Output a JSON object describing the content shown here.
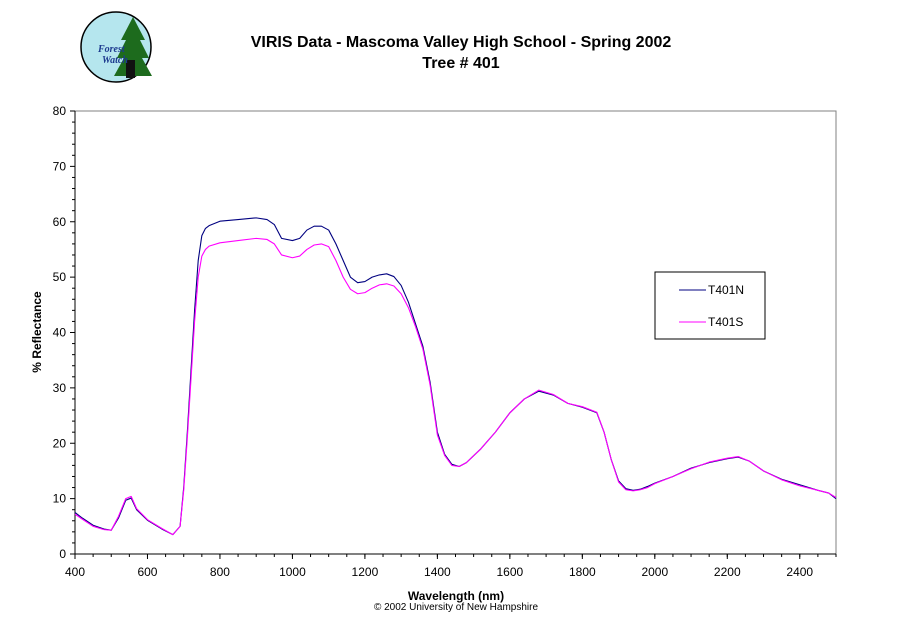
{
  "logo": {
    "line1": "Forest",
    "line2": "Watch"
  },
  "copyright": "© 2002 University of New Hampshire",
  "chart_data": {
    "type": "line",
    "title": "VIRIS Data - Mascoma Valley High School - Spring 2002",
    "subtitle": "Tree # 401",
    "xlabel": "Wavelength (nm)",
    "ylabel": "% Reflectance",
    "xlim": [
      400,
      2500
    ],
    "ylim": [
      0,
      80
    ],
    "xticks": [
      400,
      600,
      800,
      1000,
      1200,
      1400,
      1600,
      1800,
      2000,
      2200,
      2400
    ],
    "yticks": [
      0,
      10,
      20,
      30,
      40,
      50,
      60,
      70,
      80
    ],
    "grid": false,
    "legend_position": "right",
    "series": [
      {
        "name": "T401N",
        "color": "#000080",
        "x": [
          400,
          420,
          450,
          480,
          500,
          520,
          540,
          555,
          570,
          600,
          640,
          670,
          690,
          700,
          710,
          720,
          730,
          740,
          750,
          760,
          770,
          800,
          850,
          900,
          930,
          950,
          970,
          1000,
          1020,
          1040,
          1060,
          1080,
          1100,
          1120,
          1140,
          1160,
          1180,
          1200,
          1220,
          1240,
          1260,
          1280,
          1300,
          1320,
          1340,
          1360,
          1380,
          1400,
          1420,
          1440,
          1460,
          1480,
          1520,
          1560,
          1600,
          1640,
          1680,
          1720,
          1760,
          1800,
          1840,
          1860,
          1880,
          1900,
          1920,
          1940,
          1960,
          1980,
          2000,
          2050,
          2100,
          2150,
          2200,
          2230,
          2260,
          2300,
          2350,
          2400,
          2450,
          2480,
          2500
        ],
        "y": [
          7.5,
          6.5,
          5.2,
          4.5,
          4.3,
          6.5,
          9.7,
          10.1,
          8.0,
          6.1,
          4.5,
          3.5,
          5.0,
          12.0,
          22.0,
          33.0,
          44.0,
          53.0,
          57.5,
          58.8,
          59.3,
          60.1,
          60.4,
          60.7,
          60.4,
          59.5,
          57.0,
          56.6,
          57.0,
          58.5,
          59.2,
          59.2,
          58.5,
          56.0,
          53.0,
          50.0,
          49.0,
          49.2,
          50.0,
          50.4,
          50.6,
          50.1,
          48.5,
          45.5,
          41.5,
          37.5,
          31.0,
          22.0,
          18.0,
          16.2,
          15.8,
          16.5,
          19.0,
          22.0,
          25.5,
          28.0,
          29.4,
          28.7,
          27.2,
          26.5,
          25.5,
          22.0,
          17.0,
          13.2,
          11.8,
          11.5,
          11.7,
          12.2,
          12.8,
          14.0,
          15.5,
          16.5,
          17.2,
          17.5,
          16.8,
          15.0,
          13.5,
          12.5,
          11.5,
          11.0,
          10.0
        ]
      },
      {
        "name": "T401S",
        "color": "#ff00ff",
        "x": [
          400,
          420,
          450,
          480,
          500,
          520,
          540,
          555,
          570,
          600,
          640,
          670,
          690,
          700,
          710,
          720,
          730,
          740,
          750,
          760,
          770,
          800,
          850,
          900,
          930,
          950,
          970,
          1000,
          1020,
          1040,
          1060,
          1080,
          1100,
          1120,
          1140,
          1160,
          1180,
          1200,
          1220,
          1240,
          1260,
          1280,
          1300,
          1320,
          1340,
          1360,
          1380,
          1400,
          1420,
          1440,
          1460,
          1480,
          1520,
          1560,
          1600,
          1640,
          1680,
          1720,
          1760,
          1800,
          1840,
          1860,
          1880,
          1900,
          1920,
          1940,
          1960,
          1980,
          2000,
          2050,
          2100,
          2150,
          2200,
          2230,
          2260,
          2300,
          2350,
          2400,
          2450,
          2480,
          2500
        ],
        "y": [
          7.2,
          6.3,
          5.0,
          4.4,
          4.3,
          6.8,
          10.0,
          10.4,
          8.2,
          6.2,
          4.6,
          3.5,
          5.0,
          11.5,
          21.0,
          31.5,
          42.0,
          50.0,
          53.8,
          55.0,
          55.6,
          56.2,
          56.6,
          57.0,
          56.8,
          56.0,
          54.0,
          53.5,
          53.8,
          55.0,
          55.8,
          56.0,
          55.5,
          53.0,
          50.0,
          47.8,
          47.0,
          47.2,
          48.0,
          48.6,
          48.8,
          48.4,
          47.0,
          44.5,
          41.0,
          37.0,
          30.5,
          21.5,
          17.8,
          16.0,
          15.8,
          16.5,
          19.0,
          22.0,
          25.5,
          28.0,
          29.6,
          28.8,
          27.2,
          26.6,
          25.6,
          22.0,
          17.0,
          13.0,
          11.6,
          11.4,
          11.6,
          12.0,
          12.7,
          14.0,
          15.4,
          16.6,
          17.3,
          17.6,
          16.8,
          15.0,
          13.4,
          12.3,
          11.5,
          11.0,
          10.2
        ]
      }
    ]
  }
}
